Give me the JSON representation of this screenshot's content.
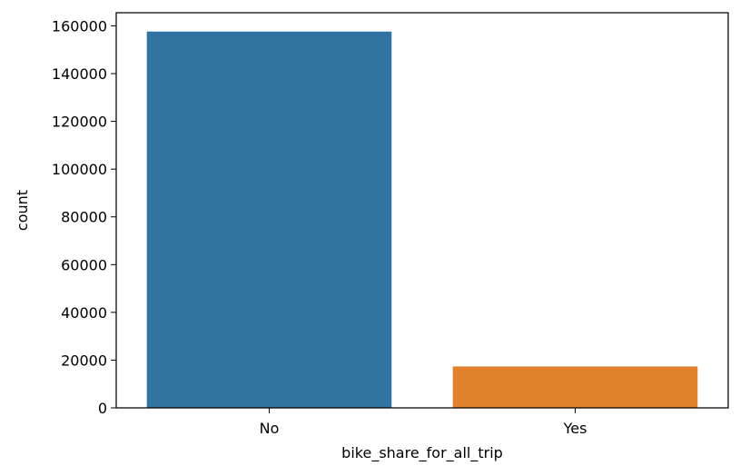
{
  "chart_data": {
    "type": "bar",
    "categories": [
      "No",
      "Yes"
    ],
    "values": [
      157606,
      17346
    ],
    "xlabel": "bike_share_for_all_trip",
    "ylabel": "count",
    "ylim": [
      0,
      165500
    ],
    "yticks": [
      0,
      20000,
      40000,
      60000,
      80000,
      100000,
      120000,
      140000,
      160000
    ],
    "ytick_labels": [
      "0",
      "20000",
      "40000",
      "60000",
      "80000",
      "100000",
      "120000",
      "140000",
      "160000"
    ],
    "bar_colors": [
      "#3274a1",
      "#e1812c"
    ],
    "grid": false,
    "legend": "none"
  }
}
